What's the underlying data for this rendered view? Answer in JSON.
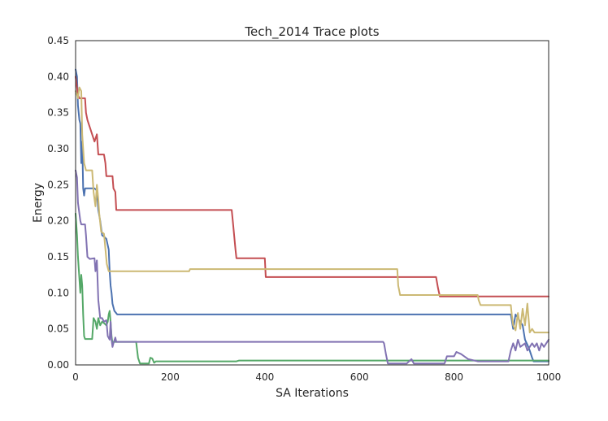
{
  "chart_data": {
    "type": "line",
    "title": "Tech_2014 Trace plots",
    "xlabel": "SA Iterations",
    "ylabel": "Energy",
    "xlim": [
      0,
      1000
    ],
    "ylim": [
      0,
      0.45
    ],
    "xticks": [
      0,
      200,
      400,
      600,
      800,
      1000
    ],
    "xtick_labels": [
      "0",
      "200",
      "400",
      "600",
      "800",
      "1000"
    ],
    "yticks": [
      0,
      0.05,
      0.1,
      0.15,
      0.2,
      0.25,
      0.3,
      0.35,
      0.4,
      0.45
    ],
    "ytick_labels": [
      "0.00",
      "0.05",
      "0.10",
      "0.15",
      "0.20",
      "0.25",
      "0.30",
      "0.35",
      "0.40",
      "0.45"
    ],
    "grid": false,
    "legend": "none",
    "series": [
      {
        "color": "#4C72B0",
        "points": [
          [
            0,
            0.41
          ],
          [
            3,
            0.4
          ],
          [
            5,
            0.36
          ],
          [
            8,
            0.34
          ],
          [
            10,
            0.335
          ],
          [
            12,
            0.28
          ],
          [
            14,
            0.31
          ],
          [
            16,
            0.245
          ],
          [
            18,
            0.235
          ],
          [
            20,
            0.245
          ],
          [
            40,
            0.245
          ],
          [
            45,
            0.242
          ],
          [
            48,
            0.215
          ],
          [
            52,
            0.2
          ],
          [
            56,
            0.18
          ],
          [
            60,
            0.178
          ],
          [
            65,
            0.175
          ],
          [
            70,
            0.16
          ],
          [
            72,
            0.13
          ],
          [
            74,
            0.11
          ],
          [
            76,
            0.1
          ],
          [
            78,
            0.085
          ],
          [
            82,
            0.075
          ],
          [
            88,
            0.07
          ],
          [
            920,
            0.07
          ],
          [
            925,
            0.05
          ],
          [
            930,
            0.07
          ],
          [
            935,
            0.065
          ],
          [
            940,
            0.06
          ],
          [
            945,
            0.055
          ],
          [
            950,
            0.035
          ],
          [
            955,
            0.028
          ],
          [
            960,
            0.02
          ],
          [
            965,
            0.01
          ],
          [
            968,
            0.005
          ],
          [
            1000,
            0.005
          ]
        ]
      },
      {
        "color": "#55A868",
        "points": [
          [
            0,
            0.21
          ],
          [
            3,
            0.18
          ],
          [
            5,
            0.15
          ],
          [
            8,
            0.12
          ],
          [
            10,
            0.1
          ],
          [
            12,
            0.125
          ],
          [
            14,
            0.11
          ],
          [
            16,
            0.07
          ],
          [
            18,
            0.04
          ],
          [
            20,
            0.036
          ],
          [
            35,
            0.036
          ],
          [
            38,
            0.065
          ],
          [
            42,
            0.06
          ],
          [
            45,
            0.05
          ],
          [
            48,
            0.065
          ],
          [
            52,
            0.055
          ],
          [
            56,
            0.06
          ],
          [
            60,
            0.058
          ],
          [
            65,
            0.055
          ],
          [
            68,
            0.06
          ],
          [
            70,
            0.07
          ],
          [
            72,
            0.075
          ],
          [
            74,
            0.06
          ],
          [
            76,
            0.04
          ],
          [
            78,
            0.03
          ],
          [
            80,
            0.032
          ],
          [
            128,
            0.032
          ],
          [
            132,
            0.01
          ],
          [
            136,
            0.002
          ],
          [
            155,
            0.002
          ],
          [
            158,
            0.01
          ],
          [
            162,
            0.009
          ],
          [
            166,
            0.003
          ],
          [
            170,
            0.005
          ],
          [
            340,
            0.005
          ],
          [
            345,
            0.006
          ],
          [
            1000,
            0.006
          ]
        ]
      },
      {
        "color": "#C44E52",
        "points": [
          [
            0,
            0.4
          ],
          [
            3,
            0.385
          ],
          [
            5,
            0.375
          ],
          [
            8,
            0.37
          ],
          [
            20,
            0.37
          ],
          [
            22,
            0.35
          ],
          [
            25,
            0.34
          ],
          [
            30,
            0.33
          ],
          [
            35,
            0.32
          ],
          [
            40,
            0.31
          ],
          [
            45,
            0.32
          ],
          [
            48,
            0.292
          ],
          [
            60,
            0.292
          ],
          [
            63,
            0.28
          ],
          [
            65,
            0.262
          ],
          [
            78,
            0.262
          ],
          [
            80,
            0.245
          ],
          [
            84,
            0.24
          ],
          [
            86,
            0.215
          ],
          [
            330,
            0.215
          ],
          [
            333,
            0.195
          ],
          [
            338,
            0.16
          ],
          [
            340,
            0.148
          ],
          [
            400,
            0.148
          ],
          [
            402,
            0.122
          ],
          [
            762,
            0.122
          ],
          [
            766,
            0.107
          ],
          [
            770,
            0.095
          ],
          [
            1000,
            0.095
          ]
        ]
      },
      {
        "color": "#8172B2",
        "points": [
          [
            0,
            0.27
          ],
          [
            3,
            0.26
          ],
          [
            5,
            0.225
          ],
          [
            10,
            0.2
          ],
          [
            12,
            0.195
          ],
          [
            20,
            0.195
          ],
          [
            22,
            0.18
          ],
          [
            25,
            0.15
          ],
          [
            30,
            0.147
          ],
          [
            40,
            0.148
          ],
          [
            42,
            0.13
          ],
          [
            45,
            0.145
          ],
          [
            48,
            0.09
          ],
          [
            52,
            0.065
          ],
          [
            56,
            0.065
          ],
          [
            60,
            0.06
          ],
          [
            65,
            0.062
          ],
          [
            68,
            0.04
          ],
          [
            72,
            0.035
          ],
          [
            74,
            0.06
          ],
          [
            76,
            0.035
          ],
          [
            78,
            0.025
          ],
          [
            80,
            0.03
          ],
          [
            84,
            0.038
          ],
          [
            86,
            0.032
          ],
          [
            650,
            0.032
          ],
          [
            652,
            0.03
          ],
          [
            656,
            0.015
          ],
          [
            660,
            0.002
          ],
          [
            700,
            0.002
          ],
          [
            705,
            0.005
          ],
          [
            710,
            0.008
          ],
          [
            715,
            0.002
          ],
          [
            780,
            0.002
          ],
          [
            785,
            0.012
          ],
          [
            800,
            0.012
          ],
          [
            805,
            0.018
          ],
          [
            815,
            0.015
          ],
          [
            830,
            0.008
          ],
          [
            850,
            0.005
          ],
          [
            915,
            0.005
          ],
          [
            920,
            0.02
          ],
          [
            925,
            0.03
          ],
          [
            930,
            0.02
          ],
          [
            935,
            0.035
          ],
          [
            940,
            0.025
          ],
          [
            950,
            0.03
          ],
          [
            955,
            0.02
          ],
          [
            960,
            0.025
          ],
          [
            965,
            0.03
          ],
          [
            970,
            0.025
          ],
          [
            975,
            0.03
          ],
          [
            980,
            0.02
          ],
          [
            985,
            0.03
          ],
          [
            990,
            0.025
          ],
          [
            1000,
            0.035
          ]
        ]
      },
      {
        "color": "#CCB974",
        "points": [
          [
            0,
            0.38
          ],
          [
            3,
            0.375
          ],
          [
            5,
            0.37
          ],
          [
            8,
            0.385
          ],
          [
            12,
            0.38
          ],
          [
            14,
            0.32
          ],
          [
            16,
            0.3
          ],
          [
            18,
            0.28
          ],
          [
            20,
            0.275
          ],
          [
            22,
            0.27
          ],
          [
            35,
            0.27
          ],
          [
            38,
            0.24
          ],
          [
            42,
            0.22
          ],
          [
            45,
            0.25
          ],
          [
            48,
            0.23
          ],
          [
            50,
            0.21
          ],
          [
            54,
            0.185
          ],
          [
            60,
            0.182
          ],
          [
            66,
            0.14
          ],
          [
            70,
            0.13
          ],
          [
            240,
            0.13
          ],
          [
            242,
            0.133
          ],
          [
            680,
            0.133
          ],
          [
            682,
            0.11
          ],
          [
            686,
            0.097
          ],
          [
            850,
            0.097
          ],
          [
            852,
            0.09
          ],
          [
            856,
            0.083
          ],
          [
            920,
            0.083
          ],
          [
            922,
            0.07
          ],
          [
            925,
            0.055
          ],
          [
            930,
            0.048
          ],
          [
            935,
            0.072
          ],
          [
            940,
            0.05
          ],
          [
            945,
            0.078
          ],
          [
            950,
            0.055
          ],
          [
            955,
            0.085
          ],
          [
            960,
            0.045
          ],
          [
            965,
            0.05
          ],
          [
            970,
            0.045
          ],
          [
            1000,
            0.045
          ]
        ]
      }
    ]
  }
}
